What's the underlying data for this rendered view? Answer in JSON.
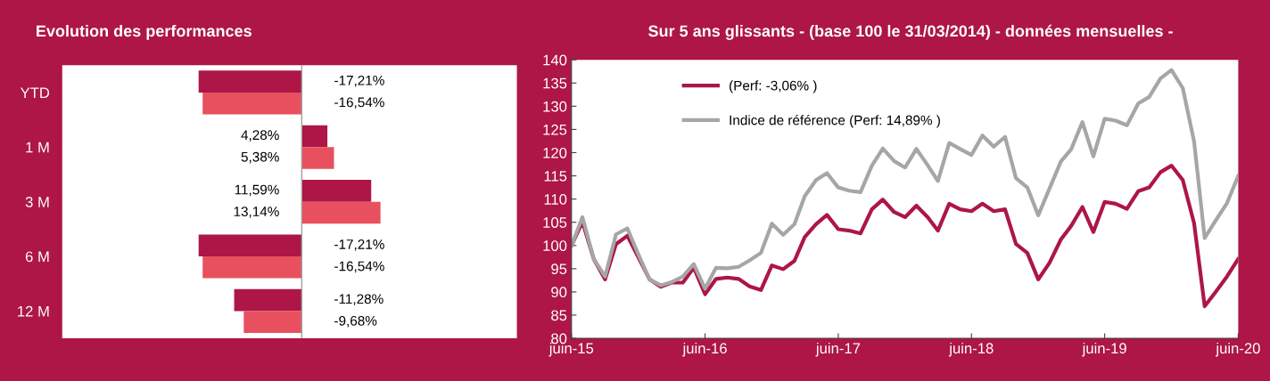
{
  "chart_data": [
    {
      "type": "bar",
      "title": "Evolution des performances",
      "orientation": "horizontal",
      "categories": [
        "YTD",
        "1 M",
        "3 M",
        "6 M",
        "12 M"
      ],
      "series": [
        {
          "color": "#ad1646",
          "values": [
            -17.21,
            4.28,
            11.59,
            -17.21,
            -11.28
          ],
          "value_labels": [
            "-17,21%",
            "4,28%",
            "11,59%",
            "-17,21%",
            "-11,28%"
          ]
        },
        {
          "color": "#e8505f",
          "values": [
            -16.54,
            5.38,
            13.14,
            -16.54,
            -9.68
          ],
          "value_labels": [
            "-16,54%",
            "5,38%",
            "13,14%",
            "-16,54%",
            "-9,68%"
          ]
        }
      ],
      "grid": false,
      "legend": false
    },
    {
      "type": "line",
      "title": "Sur 5 ans glissants - (base 100 le 31/03/2014) - données mensuelles -",
      "x": [
        "2015-06",
        "2015-07",
        "2015-08",
        "2015-09",
        "2015-10",
        "2015-11",
        "2015-12",
        "2016-01",
        "2016-02",
        "2016-03",
        "2016-04",
        "2016-05",
        "2016-06",
        "2016-07",
        "2016-08",
        "2016-09",
        "2016-10",
        "2016-11",
        "2016-12",
        "2017-01",
        "2017-02",
        "2017-03",
        "2017-04",
        "2017-05",
        "2017-06",
        "2017-07",
        "2017-08",
        "2017-09",
        "2017-10",
        "2017-11",
        "2017-12",
        "2018-01",
        "2018-02",
        "2018-03",
        "2018-04",
        "2018-05",
        "2018-06",
        "2018-07",
        "2018-08",
        "2018-09",
        "2018-10",
        "2018-11",
        "2018-12",
        "2019-01",
        "2019-02",
        "2019-03",
        "2019-04",
        "2019-05",
        "2019-06",
        "2019-07",
        "2019-08",
        "2019-09",
        "2019-10",
        "2019-11",
        "2019-12",
        "2020-01",
        "2020-02",
        "2020-03",
        "2020-04",
        "2020-05",
        "2020-06"
      ],
      "series": [
        {
          "name": "(Perf: -3,06% )",
          "color": "#ad1646",
          "values": [
            100.0,
            105.1,
            97.1,
            92.7,
            100.3,
            102.1,
            97.5,
            92.7,
            91.1,
            92.0,
            92.0,
            95.2,
            89.5,
            92.8,
            93.1,
            92.8,
            91.2,
            90.4,
            95.7,
            94.9,
            96.7,
            101.8,
            104.6,
            106.6,
            103.5,
            103.2,
            102.6,
            107.8,
            109.9,
            107.2,
            106.1,
            108.6,
            106.1,
            103.2,
            109.0,
            107.8,
            107.4,
            109.0,
            107.4,
            107.8,
            100.3,
            98.4,
            92.7,
            96.3,
            101.3,
            104.2,
            108.3,
            102.9,
            109.4,
            109.0,
            107.9,
            111.7,
            112.5,
            115.8,
            117.2,
            114.1,
            104.8,
            86.9,
            90.1,
            93.3,
            97.1
          ]
        },
        {
          "name": "Indice de référence (Perf: 14,89% )",
          "color": "#a6a6a6",
          "values": [
            100.0,
            106.1,
            97.1,
            93.3,
            102.4,
            103.7,
            98.1,
            92.7,
            91.4,
            92.1,
            93.3,
            96.0,
            90.7,
            95.2,
            95.1,
            95.4,
            96.8,
            98.4,
            104.7,
            102.3,
            104.6,
            110.6,
            114.1,
            115.6,
            112.5,
            111.8,
            111.5,
            117.2,
            120.9,
            118.2,
            116.8,
            120.8,
            117.3,
            113.9,
            122.1,
            120.8,
            119.5,
            123.7,
            121.3,
            123.4,
            114.5,
            112.5,
            106.5,
            112.3,
            118.1,
            120.7,
            126.6,
            119.2,
            127.3,
            126.9,
            125.9,
            130.6,
            132.0,
            136.0,
            137.8,
            133.9,
            122.4,
            101.6,
            105.5,
            109.1,
            115.0
          ]
        }
      ],
      "xlim": [
        "2015-06",
        "2020-06"
      ],
      "xticks": [
        {
          "value": "2015-06",
          "label": "juin-15"
        },
        {
          "value": "2016-06",
          "label": "juin-16"
        },
        {
          "value": "2017-06",
          "label": "juin-17"
        },
        {
          "value": "2018-06",
          "label": "juin-18"
        },
        {
          "value": "2019-06",
          "label": "juin-19"
        },
        {
          "value": "2020-06",
          "label": "juin-20"
        }
      ],
      "ylim": [
        80,
        140
      ],
      "yticks": [
        80,
        85,
        90,
        95,
        100,
        105,
        110,
        115,
        120,
        125,
        130,
        135,
        140
      ],
      "grid": false,
      "legend": "top left",
      "marker": "none",
      "line_style": "solid"
    }
  ]
}
